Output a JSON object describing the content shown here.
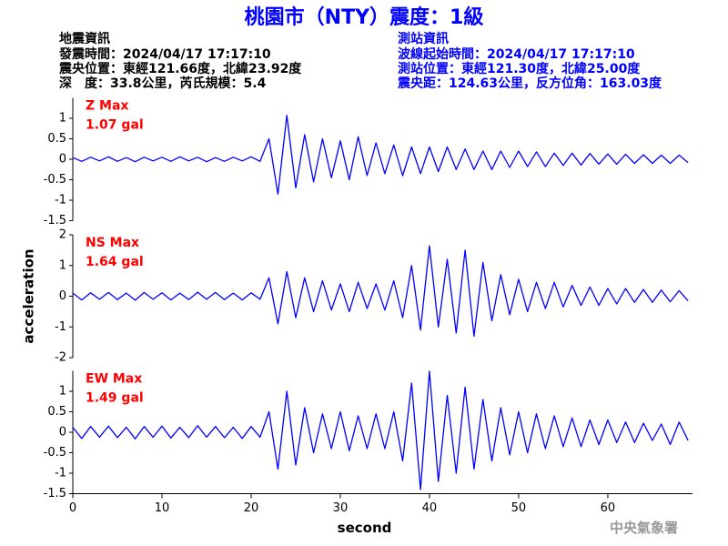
{
  "header": {
    "title": "桃園市（NTY）震度：1級",
    "left": [
      "地震資訊",
      "發震時間：2024/04/17 17:17:10",
      "震央位置：東經121.66度，北緯23.92度",
      "深　度：33.8公里，芮氏規模：5.4"
    ],
    "right": [
      "測站資訊",
      "波線起始時間：2024/04/17 17:17:10",
      "測站位置：東經121.30度，北緯25.00度",
      "震央距：124.63公里，反方位角：163.03度"
    ]
  },
  "footer": "中央氣象署",
  "chart_data": [
    {
      "type": "line",
      "color": "#0000ff",
      "annotations": [
        "Z Max",
        "1.07 gal"
      ],
      "xlim": [
        0,
        69.5
      ],
      "ylim": [
        -1.5,
        1.5
      ],
      "yticks": [
        -1.5,
        -1,
        -0.5,
        0,
        0.5,
        1
      ],
      "x": [
        0,
        1,
        2,
        3,
        4,
        5,
        6,
        7,
        8,
        9,
        10,
        11,
        12,
        13,
        14,
        15,
        16,
        17,
        18,
        19,
        20,
        21,
        22,
        23,
        24,
        25,
        26,
        27,
        28,
        29,
        30,
        31,
        32,
        33,
        34,
        35,
        36,
        37,
        38,
        39,
        40,
        41,
        42,
        43,
        44,
        45,
        46,
        47,
        48,
        49,
        50,
        51,
        52,
        53,
        54,
        55,
        56,
        57,
        58,
        59,
        60,
        61,
        62,
        63,
        64,
        65,
        66,
        67,
        68,
        69
      ],
      "values": [
        0.04,
        -0.05,
        0.05,
        -0.04,
        0.06,
        -0.05,
        0.04,
        -0.06,
        0.05,
        -0.04,
        0.05,
        -0.05,
        0.06,
        -0.04,
        0.05,
        -0.06,
        0.04,
        -0.05,
        0.05,
        -0.04,
        0.06,
        -0.05,
        0.5,
        -0.85,
        1.07,
        -0.7,
        0.6,
        -0.55,
        0.5,
        -0.45,
        0.45,
        -0.5,
        0.55,
        -0.4,
        0.4,
        -0.35,
        0.35,
        -0.4,
        0.3,
        -0.35,
        0.3,
        -0.3,
        0.3,
        -0.25,
        0.25,
        -0.25,
        0.2,
        -0.25,
        0.2,
        -0.2,
        0.2,
        -0.18,
        0.18,
        -0.18,
        0.15,
        -0.15,
        0.15,
        -0.14,
        0.14,
        -0.12,
        0.13,
        -0.12,
        0.12,
        -0.1,
        0.11,
        -0.1,
        0.1,
        -0.1,
        0.1,
        -0.08
      ]
    },
    {
      "type": "line",
      "color": "#0000ff",
      "annotations": [
        "NS Max",
        "1.64 gal"
      ],
      "ylabel": "acceleration",
      "xlim": [
        0,
        69.5
      ],
      "ylim": [
        -2,
        2
      ],
      "yticks": [
        -2,
        -1,
        0,
        1,
        2
      ],
      "x": [
        0,
        1,
        2,
        3,
        4,
        5,
        6,
        7,
        8,
        9,
        10,
        11,
        12,
        13,
        14,
        15,
        16,
        17,
        18,
        19,
        20,
        21,
        22,
        23,
        24,
        25,
        26,
        27,
        28,
        29,
        30,
        31,
        32,
        33,
        34,
        35,
        36,
        37,
        38,
        39,
        40,
        41,
        42,
        43,
        44,
        45,
        46,
        47,
        48,
        49,
        50,
        51,
        52,
        53,
        54,
        55,
        56,
        57,
        58,
        59,
        60,
        61,
        62,
        63,
        64,
        65,
        66,
        67,
        68,
        69
      ],
      "values": [
        0.1,
        -0.12,
        0.11,
        -0.1,
        0.12,
        -0.11,
        0.1,
        -0.13,
        0.12,
        -0.1,
        0.11,
        -0.12,
        0.1,
        -0.11,
        0.13,
        -0.1,
        0.12,
        -0.11,
        0.1,
        -0.12,
        0.11,
        -0.1,
        0.6,
        -0.9,
        0.8,
        -0.7,
        0.6,
        -0.5,
        0.5,
        -0.45,
        0.4,
        -0.5,
        0.45,
        -0.4,
        0.4,
        -0.45,
        0.5,
        -0.7,
        1.0,
        -1.1,
        1.64,
        -1.0,
        1.2,
        -1.2,
        1.5,
        -1.3,
        1.1,
        -0.8,
        0.7,
        -0.6,
        0.55,
        -0.5,
        0.45,
        -0.4,
        0.45,
        -0.35,
        0.35,
        -0.3,
        0.3,
        -0.3,
        0.25,
        -0.25,
        0.25,
        -0.2,
        0.22,
        -0.2,
        0.2,
        -0.18,
        0.18,
        -0.15
      ]
    },
    {
      "type": "line",
      "color": "#0000ff",
      "annotations": [
        "EW Max",
        "1.49 gal"
      ],
      "xlabel": "second",
      "xlim": [
        0,
        69.5
      ],
      "ylim": [
        -1.5,
        1.5
      ],
      "yticks": [
        -1.5,
        -1,
        -0.5,
        0,
        0.5,
        1
      ],
      "xticks": [
        0,
        10,
        20,
        30,
        40,
        50,
        60
      ],
      "x": [
        0,
        1,
        2,
        3,
        4,
        5,
        6,
        7,
        8,
        9,
        10,
        11,
        12,
        13,
        14,
        15,
        16,
        17,
        18,
        19,
        20,
        21,
        22,
        23,
        24,
        25,
        26,
        27,
        28,
        29,
        30,
        31,
        32,
        33,
        34,
        35,
        36,
        37,
        38,
        39,
        40,
        41,
        42,
        43,
        44,
        45,
        46,
        47,
        48,
        49,
        50,
        51,
        52,
        53,
        54,
        55,
        56,
        57,
        58,
        59,
        60,
        61,
        62,
        63,
        64,
        65,
        66,
        67,
        68,
        69
      ],
      "values": [
        0.12,
        -0.15,
        0.14,
        -0.12,
        0.15,
        -0.13,
        0.12,
        -0.16,
        0.14,
        -0.12,
        0.15,
        -0.14,
        0.12,
        -0.13,
        0.16,
        -0.12,
        0.14,
        -0.13,
        0.12,
        -0.15,
        0.14,
        -0.12,
        0.5,
        -0.9,
        1.0,
        -0.8,
        0.6,
        -0.5,
        0.45,
        -0.4,
        0.5,
        -0.45,
        0.4,
        -0.4,
        0.45,
        -0.4,
        0.5,
        -0.7,
        1.2,
        -1.4,
        1.49,
        -1.2,
        0.9,
        -1.0,
        1.1,
        -0.9,
        0.8,
        -0.7,
        0.6,
        -0.55,
        0.5,
        -0.5,
        0.45,
        -0.4,
        0.4,
        -0.35,
        0.35,
        -0.35,
        0.3,
        -0.3,
        0.3,
        -0.25,
        0.25,
        -0.25,
        0.22,
        -0.2,
        0.2,
        -0.3,
        0.25,
        -0.2
      ]
    }
  ]
}
